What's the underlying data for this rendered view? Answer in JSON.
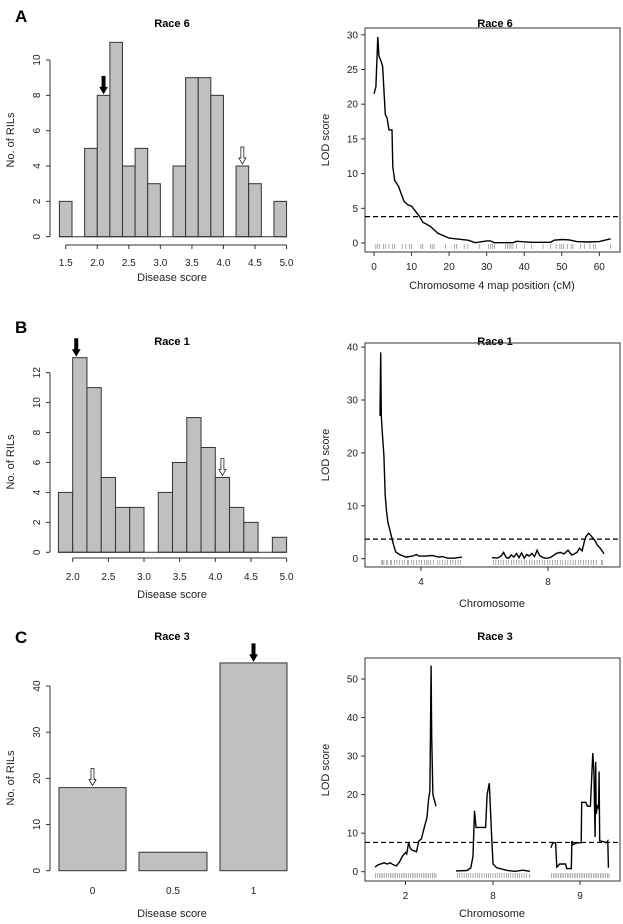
{
  "colors": {
    "bar_fill": "#c0c0c0",
    "stroke": "#333333",
    "line": "#000000"
  },
  "chart_data": [
    {
      "panel": "A",
      "type": "bar",
      "subtype": "histogram",
      "title": "Race 6",
      "xlabel": "Disease score",
      "ylabel": "No. of RILs",
      "bin_width": 0.2,
      "bin_starts": [
        1.4,
        1.6,
        1.8,
        2.0,
        2.2,
        2.4,
        2.6,
        2.8,
        3.0,
        3.2,
        3.4,
        3.6,
        3.8,
        4.0,
        4.2,
        4.4,
        4.6,
        4.8
      ],
      "values": [
        2,
        0,
        5,
        8,
        11,
        4,
        5,
        3,
        0,
        4,
        9,
        9,
        8,
        0,
        4,
        3,
        0,
        2
      ],
      "xticks": [
        1.5,
        2.0,
        2.5,
        3.0,
        3.5,
        4.0,
        4.5,
        5.0
      ],
      "xtick_labels": [
        "1.5",
        "2.0",
        "2.5",
        "3.0",
        "3.5",
        "4.0",
        "4.5",
        "5.0"
      ],
      "yticks": [
        0,
        2,
        4,
        6,
        8,
        10
      ],
      "ytick_labels": [
        "0",
        "2",
        "4",
        "6",
        "8",
        "10"
      ],
      "arrows": [
        {
          "x": 2.1,
          "y": 8,
          "style": "filled"
        },
        {
          "x": 4.3,
          "y": 4,
          "style": "open"
        }
      ]
    },
    {
      "panel": "",
      "type": "line",
      "title": "Race 6",
      "xlabel": "Chromosome 4 map position (cM)",
      "ylabel": "LOD score",
      "xlim": [
        0,
        63
      ],
      "ylim": [
        0,
        30
      ],
      "threshold": 3.8,
      "xticks": [
        0,
        10,
        20,
        30,
        40,
        50,
        60
      ],
      "xtick_labels": [
        "0",
        "10",
        "20",
        "30",
        "40",
        "50",
        "60"
      ],
      "yticks": [
        0,
        5,
        10,
        15,
        20,
        25,
        30
      ],
      "ytick_labels": [
        "0",
        "5",
        "10",
        "15",
        "20",
        "25",
        "30"
      ],
      "chromosomes": [
        {
          "name": "4",
          "length": 63,
          "x": [
            0,
            0.5,
            1,
            1.3,
            2,
            2.3,
            3,
            3.5,
            4,
            4.8,
            5,
            5.5,
            6.5,
            8,
            9,
            10,
            12,
            13,
            15,
            17,
            20,
            25,
            27,
            30,
            31,
            32,
            37,
            38,
            42,
            47,
            48,
            50,
            52,
            54,
            57,
            60,
            63
          ],
          "y": [
            21.5,
            22.5,
            29.7,
            27,
            26,
            25.5,
            18.5,
            18,
            16.3,
            16.3,
            11,
            9,
            8.2,
            6,
            5.5,
            5.3,
            3.9,
            3,
            2.4,
            1.4,
            0.7,
            0.4,
            0.05,
            0.3,
            0.3,
            0.05,
            0.05,
            0.25,
            0.1,
            0.1,
            0.4,
            0.5,
            0.45,
            0.2,
            0.15,
            0.2,
            0.6
          ],
          "markers": [
            0.5,
            1,
            1.5,
            2.5,
            3,
            4,
            5,
            5.5,
            7.5,
            8.5,
            9.5,
            10,
            12.5,
            13,
            15,
            15.5,
            16,
            19,
            21.5,
            22,
            24,
            25,
            28,
            30.5,
            31,
            31.5,
            32,
            35,
            35.5,
            36,
            36.5,
            37,
            38,
            40,
            42,
            45,
            47,
            48.5,
            49.5,
            50,
            50.5,
            51.5,
            52.5,
            53,
            55,
            56,
            57.5,
            58.5,
            59,
            63
          ]
        }
      ]
    },
    {
      "panel": "B",
      "type": "bar",
      "subtype": "histogram",
      "title": "Race 1",
      "xlabel": "Disease score",
      "ylabel": "No. of RILs",
      "bin_width": 0.2,
      "bin_starts": [
        1.8,
        2.0,
        2.2,
        2.4,
        2.6,
        2.8,
        3.0,
        3.2,
        3.4,
        3.6,
        3.8,
        4.0,
        4.2,
        4.4,
        4.6,
        4.8
      ],
      "values": [
        4,
        13,
        11,
        5,
        3,
        3,
        0,
        4,
        6,
        9,
        7,
        5,
        3,
        2,
        0,
        1
      ],
      "xticks": [
        2.0,
        2.5,
        3.0,
        3.5,
        4.0,
        4.5,
        5.0
      ],
      "xtick_labels": [
        "2.0",
        "2.5",
        "3.0",
        "3.5",
        "4.0",
        "4.5",
        "5.0"
      ],
      "yticks": [
        0,
        2,
        4,
        6,
        8,
        10,
        12
      ],
      "ytick_labels": [
        "0",
        "2",
        "4",
        "6",
        "8",
        "10",
        "12"
      ],
      "arrows": [
        {
          "x": 2.05,
          "y": 13,
          "style": "filled"
        },
        {
          "x": 4.1,
          "y": 5,
          "style": "open"
        }
      ]
    },
    {
      "panel": "",
      "type": "line",
      "title": "Race 1",
      "xlabel": "Chromosome",
      "ylabel": "LOD score",
      "ylim": [
        0,
        40
      ],
      "threshold": 3.7,
      "yticks": [
        0,
        10,
        20,
        30,
        40
      ],
      "ytick_labels": [
        "0",
        "10",
        "20",
        "30",
        "40"
      ],
      "chromosomes": [
        {
          "name": "4",
          "length": 63,
          "x": [
            0,
            0.5,
            1,
            2,
            3,
            4,
            5,
            6,
            8,
            10,
            12,
            15,
            20,
            25,
            28,
            30,
            35,
            40,
            45,
            48,
            52,
            57,
            63
          ],
          "y": [
            27,
            39,
            27,
            23,
            19.5,
            12,
            9,
            7,
            5,
            3,
            1.3,
            0.8,
            0.3,
            0.5,
            0.8,
            0.5,
            0.5,
            0.6,
            0.3,
            0.4,
            0.1,
            0.1,
            0.3
          ],
          "markers": [
            1,
            2,
            3,
            5,
            6,
            8,
            9,
            11,
            13,
            15,
            17,
            19,
            21,
            22,
            24,
            26,
            28,
            30,
            32,
            34,
            36,
            37,
            39,
            41,
            44,
            46,
            48,
            50,
            52,
            54,
            56,
            58,
            60,
            62
          ]
        },
        {
          "name": "8",
          "length": 87,
          "x": [
            0,
            4,
            7,
            9,
            11,
            13,
            15,
            17,
            19,
            21,
            23,
            25,
            27,
            29,
            31,
            33,
            35,
            37,
            39,
            41,
            43,
            45,
            47,
            50,
            53,
            56,
            59,
            62,
            64,
            66,
            68,
            70,
            72,
            73,
            75,
            76,
            78,
            80,
            82,
            84,
            86,
            87
          ],
          "y": [
            0.2,
            0.1,
            0.5,
            1.2,
            0.2,
            0.1,
            0.7,
            0.3,
            1.0,
            0.2,
            1.1,
            0.1,
            0.8,
            0.5,
            1.0,
            0.4,
            1.6,
            0.6,
            0.3,
            0.1,
            0.1,
            0.2,
            0.5,
            1.0,
            1.2,
            0.9,
            1.6,
            0.7,
            0.9,
            1.2,
            2.0,
            1.5,
            3.5,
            4.2,
            4.8,
            4.6,
            4.0,
            3.4,
            2.5,
            2.0,
            1.3,
            0.9
          ],
          "markers": [
            1,
            3,
            5,
            7,
            9,
            11,
            13,
            15,
            17,
            19,
            21,
            23,
            25,
            27,
            29,
            31,
            33,
            35,
            37,
            39,
            41,
            43,
            45,
            47,
            49,
            51,
            53,
            55,
            57,
            59,
            61,
            63,
            65,
            67,
            69,
            71,
            73,
            75,
            77,
            79,
            81,
            85,
            86
          ]
        }
      ]
    },
    {
      "panel": "C",
      "type": "bar",
      "title": "Race 3",
      "xlabel": "Disease score",
      "ylabel": "No. of RILs",
      "categories": [
        "0",
        "0.5",
        "1"
      ],
      "values": [
        18,
        4,
        45
      ],
      "yticks": [
        0,
        10,
        20,
        30,
        40
      ],
      "ytick_labels": [
        "0",
        "10",
        "20",
        "30",
        "40"
      ],
      "arrows": [
        {
          "category": 0,
          "y": 18,
          "style": "open"
        },
        {
          "category": 2,
          "y": 45,
          "style": "filled"
        }
      ]
    },
    {
      "panel": "",
      "type": "line",
      "title": "Race 3",
      "xlabel": "Chromosome",
      "ylabel": "LOD score",
      "ylim": [
        0,
        55
      ],
      "threshold": 7.6,
      "yticks": [
        0,
        10,
        20,
        30,
        40,
        50
      ],
      "ytick_labels": [
        "0",
        "10",
        "20",
        "30",
        "40",
        "50"
      ],
      "chromosomes": [
        {
          "name": "2",
          "length": 100,
          "x": [
            0,
            5,
            15,
            20,
            25,
            30,
            35,
            40,
            45,
            50,
            52,
            55,
            58,
            62,
            68,
            72,
            76,
            80,
            85,
            88,
            90,
            92,
            93,
            95,
            100
          ],
          "y": [
            1.2,
            1.8,
            2.3,
            2.0,
            2.3,
            1.8,
            1.5,
            2.5,
            4,
            5,
            4.6,
            7.5,
            6,
            5.5,
            5.2,
            8,
            8.5,
            11,
            14,
            19,
            21,
            53.5,
            35,
            20,
            17
          ],
          "markers": [
            1,
            4,
            7,
            10,
            13,
            16,
            19,
            22,
            25,
            28,
            31,
            34,
            37,
            40,
            43,
            46,
            49,
            52,
            55,
            58,
            61,
            64,
            67,
            70,
            73,
            76,
            79,
            82,
            85,
            88,
            91,
            94,
            97,
            100
          ]
        },
        {
          "name": "8",
          "length": 100,
          "x": [
            0,
            15,
            20,
            23,
            25,
            27,
            40,
            42,
            45,
            48,
            50,
            55,
            70,
            80,
            90,
            100
          ],
          "y": [
            0.2,
            0.3,
            1,
            4,
            15.8,
            11.5,
            11.5,
            20,
            23,
            10,
            2,
            1,
            0.3,
            0.1,
            0.4,
            0.1
          ],
          "markers": [
            2,
            5,
            8,
            11,
            14,
            17,
            20,
            23,
            26,
            29,
            32,
            35,
            38,
            41,
            44,
            47,
            50,
            53,
            56,
            59,
            62,
            65,
            68,
            71,
            74,
            77,
            80,
            83,
            86,
            89,
            92,
            95,
            99
          ]
        },
        {
          "name": "9",
          "length": 100,
          "x": [
            0,
            3,
            8,
            10,
            15,
            25,
            27,
            35,
            36,
            38,
            45,
            52,
            53,
            60,
            63,
            68,
            72,
            74,
            76,
            77,
            78,
            80,
            82,
            83,
            84,
            90,
            95,
            98,
            99,
            100
          ],
          "y": [
            6.2,
            7.5,
            7.5,
            1.2,
            2,
            2,
            0.8,
            0.8,
            8,
            7,
            7.5,
            7.5,
            18,
            18,
            17,
            17,
            30.8,
            26,
            9,
            28.5,
            15,
            17,
            16.5,
            26,
            8,
            7.8,
            7.5,
            8,
            1.2,
            1.2
          ],
          "markers": [
            1,
            4,
            7,
            10,
            13,
            16,
            19,
            22,
            25,
            28,
            31,
            34,
            37,
            40,
            43,
            46,
            49,
            52,
            55,
            58,
            61,
            64,
            67,
            70,
            73,
            76,
            79,
            82,
            85,
            88,
            91,
            94,
            97,
            100
          ]
        }
      ]
    }
  ]
}
